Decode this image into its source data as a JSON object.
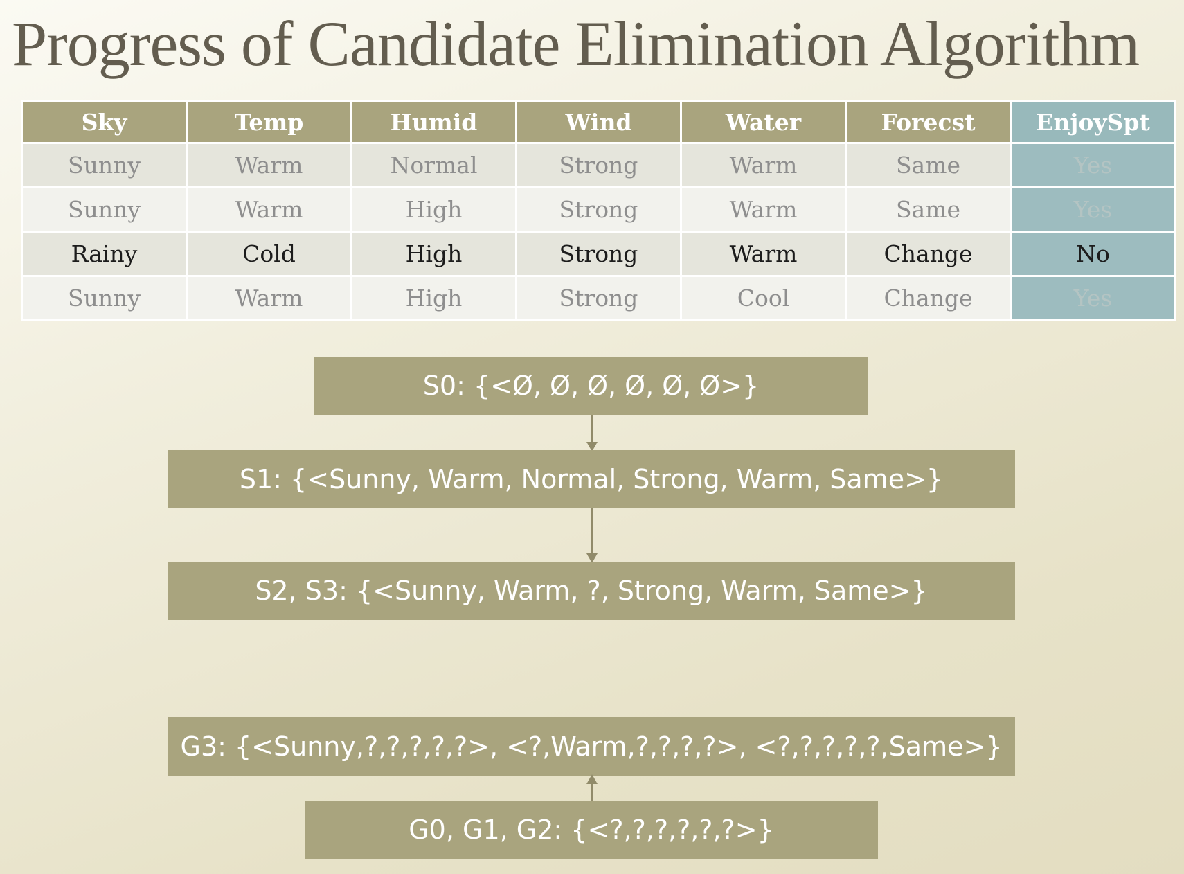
{
  "title": "Progress of Candidate Elimination Algorithm",
  "table": {
    "headers": [
      "Sky",
      "Temp",
      "Humid",
      "Wind",
      "Water",
      "Forecst",
      "EnjoySpt"
    ],
    "rows": [
      [
        "Sunny",
        "Warm",
        "Normal",
        "Strong",
        "Warm",
        "Same",
        "Yes"
      ],
      [
        "Sunny",
        "Warm",
        "High",
        "Strong",
        "Warm",
        "Same",
        "Yes"
      ],
      [
        "Rainy",
        "Cold",
        "High",
        "Strong",
        "Warm",
        "Change",
        "No"
      ],
      [
        "Sunny",
        "Warm",
        "High",
        "Strong",
        "Cool",
        "Change",
        "Yes"
      ]
    ]
  },
  "boundaries": {
    "s0": "S0: {<Ø, Ø, Ø, Ø, Ø, Ø>}",
    "s1": "S1: {<Sunny, Warm, Normal, Strong, Warm, Same>}",
    "s2_s3": "S2, S3: {<Sunny, Warm, ?, Strong, Warm, Same>}",
    "g3": "G3: {<Sunny,?,?,?,?,?>, <?,Warm,?,?,?,?>, <?,?,?,?,?,Same>}",
    "g0_g1_g2": "G0, G1, G2: {<?,?,?,?,?,?>}"
  },
  "colors": {
    "title": "#635d4f",
    "box_fill": "#a9a47e",
    "target_column": "#9dbcbf",
    "negative_row_text": "#1c1c1c",
    "positive_row_text": "#8e8e8e"
  }
}
